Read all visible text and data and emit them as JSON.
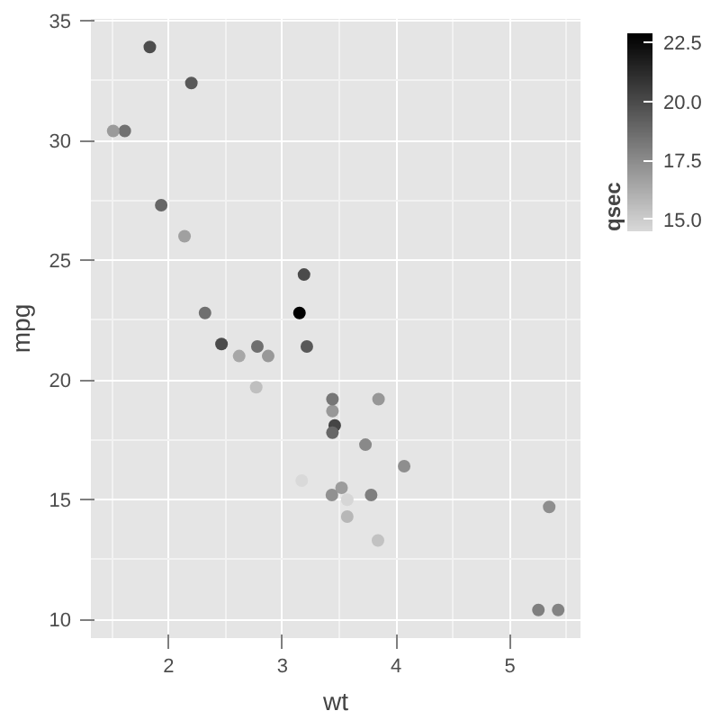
{
  "chart_data": {
    "type": "scatter",
    "xlabel": "wt",
    "ylabel": "mpg",
    "clabel": "qsec",
    "x": [
      2.62,
      2.875,
      2.32,
      3.215,
      3.44,
      3.46,
      3.57,
      3.19,
      3.15,
      3.44,
      3.44,
      4.07,
      3.73,
      3.78,
      5.25,
      5.424,
      5.345,
      2.2,
      1.615,
      1.835,
      2.465,
      3.52,
      3.435,
      3.84,
      3.845,
      1.935,
      2.14,
      1.513,
      3.17,
      2.77,
      3.57,
      2.78
    ],
    "values": [
      21.0,
      21.0,
      22.8,
      21.4,
      18.7,
      18.1,
      14.3,
      24.4,
      22.8,
      19.2,
      17.8,
      16.4,
      17.3,
      15.2,
      10.4,
      10.4,
      14.7,
      32.4,
      30.4,
      33.9,
      21.5,
      15.5,
      15.2,
      13.3,
      19.2,
      27.3,
      26.0,
      30.4,
      15.8,
      19.7,
      15.0,
      21.4
    ],
    "cvalues": [
      16.46,
      17.02,
      18.61,
      19.44,
      17.02,
      20.22,
      15.84,
      20.0,
      22.9,
      18.3,
      18.9,
      17.4,
      17.6,
      18.0,
      17.98,
      17.82,
      17.42,
      19.47,
      18.52,
      19.9,
      20.01,
      16.87,
      17.3,
      15.41,
      17.05,
      18.9,
      16.7,
      16.9,
      14.5,
      15.5,
      14.6,
      18.6
    ],
    "clim": [
      14.5,
      22.9
    ],
    "cticks": [
      {
        "value": 15,
        "label": "15.0"
      },
      {
        "value": 17.5,
        "label": "17.5"
      },
      {
        "value": 20,
        "label": "20.0"
      },
      {
        "value": 22.5,
        "label": "22.5"
      }
    ],
    "xlim": [
      1.317,
      5.62
    ],
    "ylim": [
      9.225,
      35.075
    ],
    "xticks": [
      2,
      3,
      4,
      5
    ],
    "yticks": [
      10,
      15,
      20,
      25,
      30,
      35
    ],
    "grid": true,
    "marker": "circle"
  }
}
